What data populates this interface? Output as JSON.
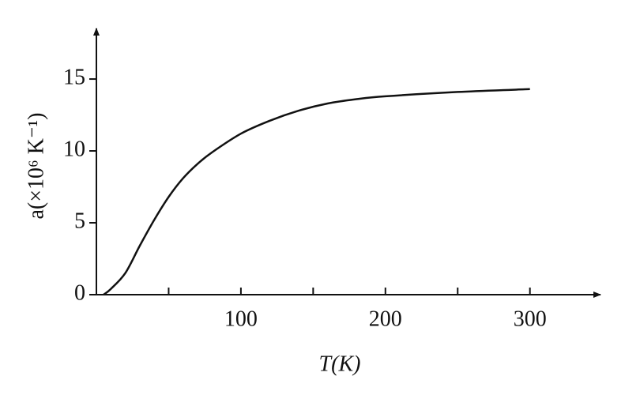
{
  "chart_data": {
    "type": "line",
    "x_label": "T(K)",
    "y_label": "a(×10⁶ K⁻¹)",
    "x": [
      5,
      10,
      20,
      30,
      40,
      50,
      60,
      70,
      80,
      100,
      120,
      140,
      160,
      180,
      200,
      250,
      300
    ],
    "series": [
      {
        "color": "#111111",
        "values": [
          0,
          0.4,
          1.5,
          3.4,
          5.2,
          6.8,
          8.1,
          9.1,
          9.9,
          11.2,
          12.1,
          12.8,
          13.3,
          13.6,
          13.8,
          14.1,
          14.3
        ]
      }
    ],
    "xlim": [
      0,
      345
    ],
    "ylim": [
      0,
      18.3
    ],
    "xticks": [
      100,
      200,
      300
    ],
    "xminorticks": [
      50,
      150,
      250
    ],
    "yticks": [
      0,
      5,
      10,
      15
    ]
  }
}
